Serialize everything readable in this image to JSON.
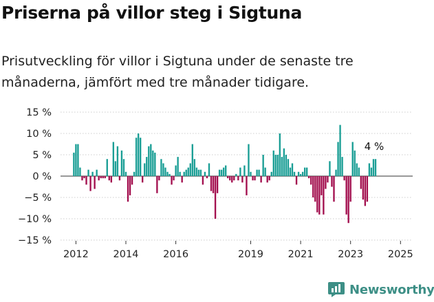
{
  "title": "Priserna på villor steg i Sigtuna",
  "subtitle": "Prisutveckling för villor i Sigtuna under de senaste tre månaderna, jämfört med tre månader tidigare.",
  "brand": "Newsworthy",
  "colors": {
    "positive": "#1a9e95",
    "negative": "#a3104f",
    "grid": "#cccccc",
    "text": "#222222",
    "brand": "#3d8f86"
  },
  "chart_data": {
    "type": "bar",
    "title": "Priserna på villor steg i Sigtuna",
    "xlabel": "",
    "ylabel": "",
    "ylim": [
      -15,
      15
    ],
    "y_ticks": [
      15,
      10,
      5,
      0,
      -5,
      -10,
      -15
    ],
    "y_tick_labels": [
      "15 %",
      "10 %",
      "5 %",
      "0 %",
      "−5 %",
      "−10 %",
      "−15 %"
    ],
    "x_ticks": [
      2012,
      2014,
      2016,
      2019,
      2021,
      2023,
      2025
    ],
    "x_tick_labels": [
      "2012",
      "2014",
      "2016",
      "2019",
      "2021",
      "2023",
      "2025"
    ],
    "start": "2011-12",
    "frequency": "monthly",
    "annotation": {
      "text": "4 %",
      "target": "last"
    },
    "values": [
      5.5,
      7.5,
      7.5,
      2,
      -1,
      -0.5,
      -2,
      1.5,
      -3.5,
      1,
      -3,
      1.5,
      -1,
      -0.5,
      -0.5,
      -0.5,
      4,
      -1,
      -1.5,
      8,
      3.5,
      7,
      -1,
      6,
      4,
      1,
      -6,
      -4.5,
      -2,
      1,
      9,
      10,
      9,
      -1.5,
      3,
      4.5,
      7,
      7.5,
      6,
      5.5,
      -4,
      -1,
      4,
      3,
      2,
      1,
      0.5,
      -2,
      -1,
      2.5,
      4.5,
      1,
      -1.5,
      1,
      1.5,
      2,
      3,
      7.5,
      4,
      2,
      1.5,
      1.5,
      -2,
      1,
      -0.5,
      3,
      -3.5,
      -4,
      -10,
      -4,
      1.5,
      1.5,
      2,
      2.5,
      -0.5,
      -1,
      -1.5,
      -1,
      0.5,
      -1,
      2,
      -1.5,
      2.5,
      -4.5,
      7.5,
      1,
      -1,
      -1,
      1.5,
      1.5,
      -1.5,
      5,
      2,
      -1.5,
      -1,
      1,
      6,
      5,
      5,
      10,
      4.5,
      6.5,
      5,
      4,
      2,
      3,
      1,
      -2,
      1,
      0.5,
      1,
      2,
      2,
      -0.5,
      -2,
      -5,
      -6,
      -8.5,
      -9,
      -4.5,
      -9,
      -3,
      -1.5,
      3.5,
      -2.5,
      -6,
      1.5,
      8,
      12,
      4.5,
      -1,
      -9,
      -11,
      -6,
      8,
      6,
      3,
      2,
      -3,
      -5.5,
      -7,
      -6,
      3,
      2,
      4,
      4
    ]
  }
}
